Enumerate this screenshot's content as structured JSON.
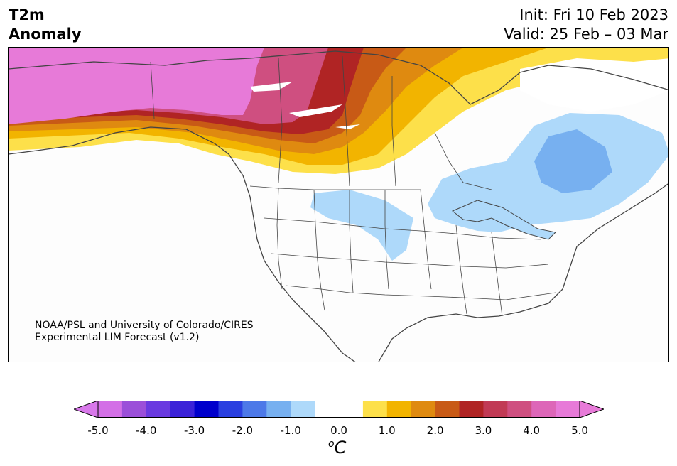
{
  "header": {
    "variable": "T2m",
    "variable_sub": "Anomaly",
    "init": "Init: Fri 10 Feb 2023",
    "valid": "Valid: 25 Feb – 03 Mar"
  },
  "credit": {
    "line1": "NOAA/PSL and University of Colorado/CIRES",
    "line2": "Experimental LIM Forecast (v1.2)"
  },
  "colorbar": {
    "unit_base": "C",
    "unit_sup": "o",
    "ticks": [
      "-5.0",
      "-4.0",
      "-3.0",
      "-2.0",
      "-1.0",
      "0.0",
      "1.0",
      "2.0",
      "3.0",
      "4.0",
      "5.0"
    ],
    "colors": [
      "#d36fe6",
      "#9b4fd9",
      "#6a3ae0",
      "#3b22d8",
      "#0000cc",
      "#2a3fe0",
      "#4d79e8",
      "#77b0f0",
      "#aed9fa",
      "#ffffff",
      "#ffffff",
      "#fde04a",
      "#f2b400",
      "#df8a10",
      "#c85a16",
      "#b02424",
      "#c13a55",
      "#cf4f80",
      "#dd66b8",
      "#e77ad8"
    ],
    "low_end_color": "#d878ea",
    "high_end_color": "#e77ad8"
  },
  "map": {
    "region": "North America",
    "projection": "Lambert Conformal",
    "anomaly_colors": {
      "pink_hot": "#e77ad8",
      "magenta": "#cf4f80",
      "red": "#b02424",
      "dark_orange": "#c85a16",
      "orange": "#df8a10",
      "amber": "#f2b400",
      "yellow": "#fde04a",
      "light_blue": "#aed9fa",
      "blue": "#77b0f0"
    }
  }
}
